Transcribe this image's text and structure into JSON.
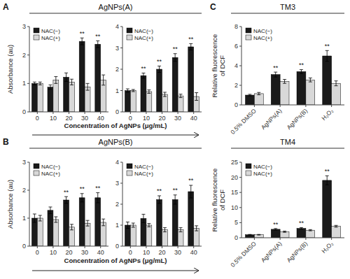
{
  "chart_data": [
    {
      "type": "bar",
      "panel_label": "A",
      "title": "AgNPs(A)",
      "ylabel": "Absorbance (au)",
      "xlabel": "Concentration of AgNPs (μg/mL)",
      "categories": [
        0,
        10,
        20,
        30,
        40
      ],
      "series": [
        {
          "name": "NAC(−)",
          "color": "#1a1a1a",
          "values": [
            1.0,
            0.87,
            1.22,
            2.48,
            2.38
          ],
          "errors": [
            0.05,
            0.08,
            0.15,
            0.12,
            0.12
          ],
          "annotations": [
            null,
            null,
            null,
            "**",
            "**"
          ]
        },
        {
          "name": "NAC(+)",
          "color": "#d8d8d8",
          "values": [
            1.0,
            1.12,
            1.05,
            0.88,
            1.12
          ],
          "errors": [
            0.05,
            0.12,
            0.1,
            0.12,
            0.18
          ]
        }
      ],
      "ylim": [
        0,
        3
      ],
      "yticks": [
        0,
        1,
        2,
        3
      ],
      "grid": false,
      "legend": "upper-left"
    },
    {
      "type": "bar",
      "categories": [
        0,
        10,
        20,
        30,
        40
      ],
      "series": [
        {
          "name": "NAC(−)",
          "color": "#1a1a1a",
          "values": [
            1.0,
            1.7,
            2.0,
            2.55,
            3.05
          ],
          "errors": [
            0.08,
            0.12,
            0.15,
            0.18,
            0.15
          ],
          "annotations": [
            null,
            "**",
            "**",
            "**",
            "**"
          ]
        },
        {
          "name": "NAC(+)",
          "color": "#d8d8d8",
          "values": [
            1.0,
            0.95,
            0.82,
            0.75,
            0.72
          ],
          "errors": [
            0.05,
            0.08,
            0.1,
            0.08,
            0.18
          ]
        }
      ],
      "ylim": [
        0,
        4
      ],
      "yticks": [
        0,
        1,
        2,
        3,
        4
      ],
      "grid": false,
      "legend": "upper-left"
    },
    {
      "type": "bar",
      "panel_label": "B",
      "title": "AgNPs(B)",
      "ylabel": "Absorbance (au)",
      "xlabel": "Concentration of AgNPs (μg/mL)",
      "categories": [
        0,
        10,
        20,
        30,
        40
      ],
      "series": [
        {
          "name": "NAC(−)",
          "color": "#1a1a1a",
          "values": [
            1.0,
            1.28,
            1.65,
            1.73,
            1.73
          ],
          "errors": [
            0.15,
            0.12,
            0.12,
            0.15,
            0.18
          ],
          "annotations": [
            null,
            null,
            "**",
            "**",
            "**"
          ]
        },
        {
          "name": "NAC(+)",
          "color": "#d8d8d8",
          "values": [
            1.0,
            0.95,
            0.68,
            0.82,
            0.85
          ],
          "errors": [
            0.1,
            0.1,
            0.1,
            0.1,
            0.12
          ]
        }
      ],
      "ylim": [
        0,
        3
      ],
      "yticks": [
        0,
        1,
        2,
        3
      ],
      "grid": false,
      "legend": "upper-left"
    },
    {
      "type": "bar",
      "categories": [
        0,
        10,
        20,
        30,
        40
      ],
      "series": [
        {
          "name": "NAC(−)",
          "color": "#1a1a1a",
          "values": [
            1.0,
            1.32,
            2.22,
            2.22,
            2.6
          ],
          "errors": [
            0.15,
            0.2,
            0.18,
            0.22,
            0.3
          ],
          "annotations": [
            null,
            null,
            "**",
            "**",
            "**"
          ]
        },
        {
          "name": "NAC(+)",
          "color": "#d8d8d8",
          "values": [
            1.0,
            1.0,
            0.78,
            0.78,
            0.85
          ],
          "errors": [
            0.1,
            0.08,
            0.1,
            0.1,
            0.12
          ]
        }
      ],
      "ylim": [
        0,
        4
      ],
      "yticks": [
        0,
        1,
        2,
        3,
        4
      ],
      "grid": false,
      "legend": "upper-left"
    },
    {
      "type": "bar",
      "panel_label": "C",
      "title": "TM3",
      "ylabel": "Relative fluorescence\nof DCF",
      "categories": [
        "0.5% DMSO",
        "AgNPs(A)",
        "AgNPs(B)",
        "H₂O₂"
      ],
      "series": [
        {
          "name": "NAC(−)",
          "color": "#1a1a1a",
          "values": [
            1.0,
            3.1,
            3.4,
            5.0
          ],
          "errors": [
            0.08,
            0.25,
            0.2,
            0.55
          ],
          "annotations": [
            null,
            "**",
            "**",
            "**"
          ]
        },
        {
          "name": "NAC(+)",
          "color": "#d8d8d8",
          "values": [
            1.15,
            2.4,
            2.55,
            2.2
          ],
          "errors": [
            0.12,
            0.2,
            0.2,
            0.25
          ]
        }
      ],
      "ylim": [
        0,
        8
      ],
      "yticks": [
        0,
        2,
        4,
        6,
        8
      ],
      "grid": false,
      "legend": "upper-left"
    },
    {
      "type": "bar",
      "title": "TM4",
      "ylabel": "Relative fluorescence\nof DCF",
      "categories": [
        "0.5% DMSO",
        "AgNPs(A)",
        "AgNPs(B)",
        "H₂O₂"
      ],
      "series": [
        {
          "name": "NAC(−)",
          "color": "#1a1a1a",
          "values": [
            1.0,
            2.8,
            3.1,
            19.0
          ],
          "errors": [
            0.1,
            0.25,
            0.28,
            1.5
          ],
          "annotations": [
            null,
            "**",
            "**",
            "**"
          ]
        },
        {
          "name": "NAC(+)",
          "color": "#d8d8d8",
          "values": [
            1.0,
            2.0,
            2.5,
            3.8
          ],
          "errors": [
            0.1,
            0.2,
            0.2,
            0.3
          ]
        }
      ],
      "ylim": [
        0,
        25
      ],
      "yticks": [
        0,
        5,
        10,
        15,
        20,
        25
      ],
      "grid": false,
      "legend": "upper-left"
    }
  ]
}
